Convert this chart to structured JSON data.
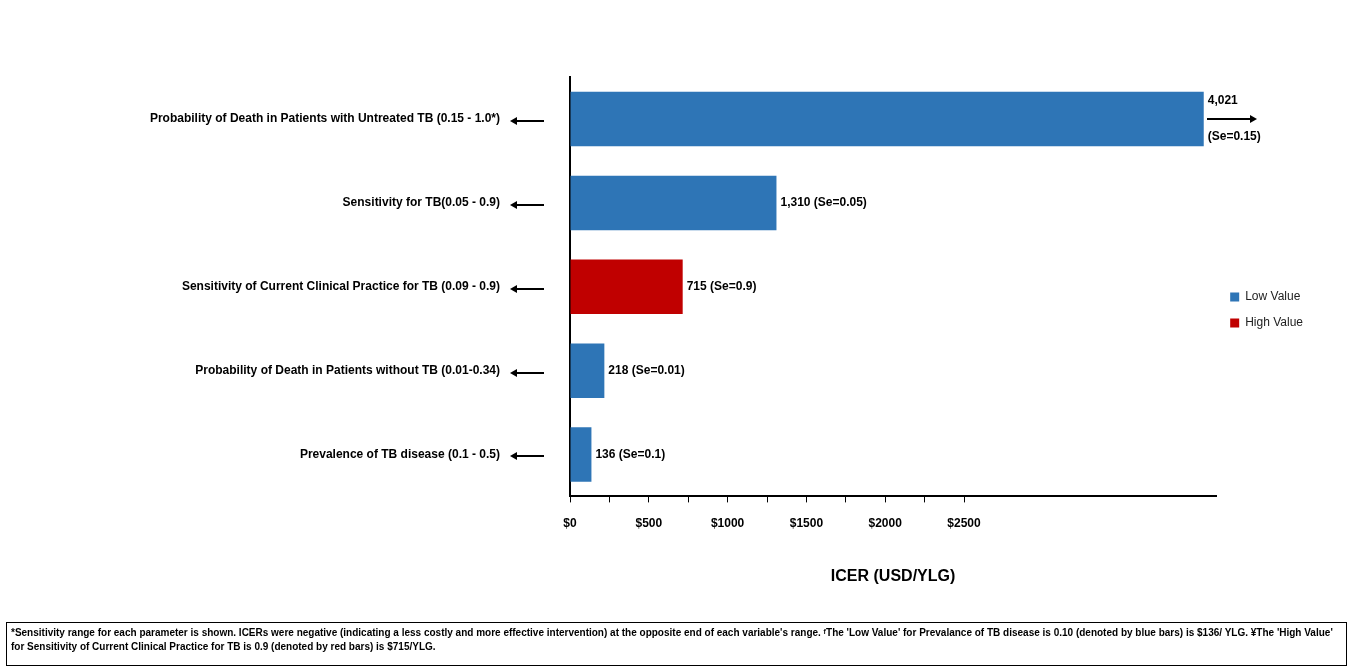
{
  "chart_data": {
    "type": "bar",
    "orientation": "horizontal",
    "stacked": true,
    "categories": [
      "Probability of Death in Patients with Untreated TB (0.15 - 1.0*)",
      "Sensitivity for TB(0.05 - 0.9)",
      "Sensitivity of Current Clinical Practice for TB (0.09 - 0.9)",
      "Probability of Death in Patients without TB (0.01-0.34)",
      "Prevalence of TB disease (0.1 - 0.5)"
    ],
    "series": [
      {
        "name": "Low Value",
        "color": "#2e75b6",
        "values": [
          4021,
          1310,
          null,
          218,
          136
        ],
        "value_labels": [
          "4,021 (Se=0.15)",
          "1,310 (Se=0.05)",
          null,
          "218 (Se=0.01)",
          "136 (Se=0.1)"
        ]
      },
      {
        "name": "High Value",
        "color": "#c00000",
        "values": [
          null,
          null,
          715,
          null,
          null
        ],
        "value_labels": [
          null,
          null,
          "715 (Se=0.9)",
          null,
          null
        ]
      }
    ],
    "xlabel": "ICER (USD/YLG)",
    "xlim": [
      0,
      4100
    ],
    "xticks": [
      {
        "value": 0,
        "label": "$0"
      },
      {
        "value": 250,
        "label": null
      },
      {
        "value": 500,
        "label": "$500"
      },
      {
        "value": 750,
        "label": null
      },
      {
        "value": 1000,
        "label": "$1000"
      },
      {
        "value": 1250,
        "label": null
      },
      {
        "value": 1500,
        "label": "$1500"
      },
      {
        "value": 1750,
        "label": null
      },
      {
        "value": 2000,
        "label": "$2000"
      },
      {
        "value": 2250,
        "label": null
      },
      {
        "value": 2500,
        "label": "$2500"
      }
    ],
    "grid": false,
    "legend": "right",
    "annotations": [
      "*Sensitivity range for each parameter is shown. ICERs were negative (indicating a less costly and more effective intervention) at the opposite end of each variable's range.  ᶠThe 'Low Value' for Prevalance of TB disease is 0.10 (denoted by blue bars) is $136/ YLG. ¥The 'High Value' for Sensitivity of Current Clinical Practice for TB is 0.9 (denoted by red bars) is $715/YLG."
    ]
  }
}
